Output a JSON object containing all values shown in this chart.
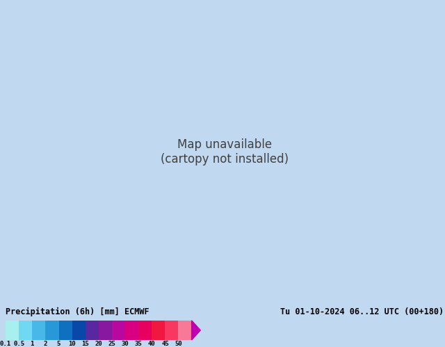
{
  "title_left": "Precipitation (6h) [mm] ECMWF",
  "title_right": "Tu 01-10-2024 06..12 UTC (00+180)",
  "colorbar_labels": [
    "0.1",
    "0.5",
    "1",
    "2",
    "5",
    "10",
    "15",
    "20",
    "25",
    "30",
    "35",
    "40",
    "45",
    "50"
  ],
  "colorbar_colors": [
    "#a8f0f0",
    "#70d8f0",
    "#48b8e8",
    "#2898d8",
    "#1070c0",
    "#0848a8",
    "#5828a0",
    "#8818a0",
    "#b808a0",
    "#d80080",
    "#e80060",
    "#f01840",
    "#f83860",
    "#f87898"
  ],
  "ocean_color": "#b0d8f0",
  "land_color_low": "#a8d898",
  "land_color_mid": "#c8c890",
  "land_color_high": "#b0b878",
  "fig_width": 6.34,
  "fig_height": 4.9,
  "dpi": 100,
  "bottom_bar_height": 0.108,
  "bottom_text_color": "black",
  "bottom_bg": "#d8d8d8"
}
